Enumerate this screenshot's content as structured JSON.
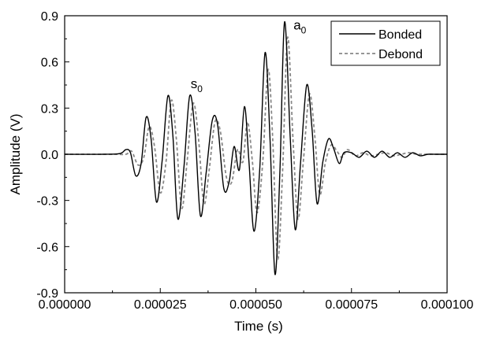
{
  "chart_data": {
    "type": "line",
    "title": "",
    "xlabel": "Time (s)",
    "ylabel": "Amplitude (V)",
    "xlim": [
      0,
      0.0001
    ],
    "ylim": [
      -0.9,
      0.9
    ],
    "x_ticks": [
      "0.000000",
      "0.000025",
      "0.000050",
      "0.000075",
      "0.000100"
    ],
    "y_ticks": [
      "-0.9",
      "-0.6",
      "-0.3",
      "0.0",
      "0.3",
      "0.6",
      "0.9"
    ],
    "legend_position": "top-right",
    "grid": false,
    "annotations": [
      {
        "base": "s",
        "sub": "0",
        "x": 3.45e-05,
        "y": 0.43
      },
      {
        "base": "a",
        "sub": "0",
        "x": 6.15e-05,
        "y": 0.81
      }
    ],
    "series": [
      {
        "name": "Bonded",
        "color": "#000000",
        "dash": "solid",
        "points": [
          [
            0,
            0
          ],
          [
            1e-05,
            0
          ],
          [
            1.45e-05,
            0.005
          ],
          [
            1.6e-05,
            0.03
          ],
          [
            1.72e-05,
            0.01
          ],
          [
            1.86e-05,
            -0.14
          ],
          [
            2e-05,
            -0.06
          ],
          [
            2.13e-05,
            0.24
          ],
          [
            2.26e-05,
            0.1
          ],
          [
            2.4e-05,
            -0.31
          ],
          [
            2.55e-05,
            -0.04
          ],
          [
            2.7e-05,
            0.38
          ],
          [
            2.83e-05,
            0.12
          ],
          [
            2.96e-05,
            -0.42
          ],
          [
            3.12e-05,
            -0.08
          ],
          [
            3.27e-05,
            0.38
          ],
          [
            3.41e-05,
            0.14
          ],
          [
            3.55e-05,
            -0.4
          ],
          [
            3.7e-05,
            -0.12
          ],
          [
            3.86e-05,
            0.22
          ],
          [
            4e-05,
            0.19
          ],
          [
            4.16e-05,
            -0.22
          ],
          [
            4.3e-05,
            -0.18
          ],
          [
            4.43e-05,
            0.05
          ],
          [
            4.57e-05,
            -0.1
          ],
          [
            4.7e-05,
            0.31
          ],
          [
            4.82e-05,
            -0.05
          ],
          [
            4.95e-05,
            -0.5
          ],
          [
            5.1e-05,
            -0.1
          ],
          [
            5.24e-05,
            0.66
          ],
          [
            5.37e-05,
            0.1
          ],
          [
            5.5e-05,
            -0.78
          ],
          [
            5.63e-05,
            -0.1
          ],
          [
            5.75e-05,
            0.86
          ],
          [
            5.9e-05,
            0.1
          ],
          [
            6.03e-05,
            -0.49
          ],
          [
            6.17e-05,
            -0.05
          ],
          [
            6.33e-05,
            0.45
          ],
          [
            6.47e-05,
            0.16
          ],
          [
            6.6e-05,
            -0.32
          ],
          [
            6.75e-05,
            -0.05
          ],
          [
            6.9e-05,
            0.1
          ],
          [
            7.03e-05,
            0.04
          ],
          [
            7.18e-05,
            -0.06
          ],
          [
            7.3e-05,
            0.01
          ],
          [
            7.5e-05,
            0.01
          ],
          [
            7.7e-05,
            -0.02
          ],
          [
            7.9e-05,
            0.02
          ],
          [
            8.1e-05,
            -0.02
          ],
          [
            8.3e-05,
            0.02
          ],
          [
            8.5e-05,
            -0.02
          ],
          [
            8.7e-05,
            0.01
          ],
          [
            8.9e-05,
            -0.02
          ],
          [
            9.1e-05,
            0.01
          ],
          [
            9.3e-05,
            -0.01
          ],
          [
            9.5e-05,
            0.0
          ],
          [
            9.7e-05,
            0.0
          ],
          [
            0.0001,
            0.0
          ]
        ]
      },
      {
        "name": "Debond",
        "color": "#888888",
        "dash": "dashed",
        "points": [
          [
            0,
            0
          ],
          [
            1.2e-05,
            0
          ],
          [
            1.6e-05,
            0.0
          ],
          [
            1.75e-05,
            0.02
          ],
          [
            1.92e-05,
            -0.07
          ],
          [
            2.07e-05,
            -0.02
          ],
          [
            2.21e-05,
            0.18
          ],
          [
            2.35e-05,
            0.05
          ],
          [
            2.5e-05,
            -0.25
          ],
          [
            2.65e-05,
            -0.05
          ],
          [
            2.79e-05,
            0.35
          ],
          [
            2.92e-05,
            0.1
          ],
          [
            3.06e-05,
            -0.35
          ],
          [
            3.2e-05,
            -0.05
          ],
          [
            3.36e-05,
            0.33
          ],
          [
            3.5e-05,
            0.1
          ],
          [
            3.64e-05,
            -0.32
          ],
          [
            3.78e-05,
            -0.1
          ],
          [
            3.93e-05,
            0.21
          ],
          [
            4.07e-05,
            0.15
          ],
          [
            4.23e-05,
            -0.15
          ],
          [
            4.37e-05,
            -0.18
          ],
          [
            4.52e-05,
            0.03
          ],
          [
            4.66e-05,
            -0.05
          ],
          [
            4.78e-05,
            0.21
          ],
          [
            4.91e-05,
            -0.05
          ],
          [
            5.03e-05,
            -0.38
          ],
          [
            5.18e-05,
            -0.05
          ],
          [
            5.32e-05,
            0.55
          ],
          [
            5.44e-05,
            0.1
          ],
          [
            5.57e-05,
            -0.68
          ],
          [
            5.7e-05,
            -0.1
          ],
          [
            5.83e-05,
            0.76
          ],
          [
            5.97e-05,
            0.1
          ],
          [
            6.1e-05,
            -0.42
          ],
          [
            6.24e-05,
            -0.05
          ],
          [
            6.4e-05,
            0.39
          ],
          [
            6.54e-05,
            0.12
          ],
          [
            6.67e-05,
            -0.26
          ],
          [
            6.82e-05,
            -0.05
          ],
          [
            6.97e-05,
            0.06
          ],
          [
            7.12e-05,
            0.02
          ],
          [
            7.25e-05,
            -0.02
          ],
          [
            7.4e-05,
            0.03
          ],
          [
            7.6e-05,
            -0.01
          ],
          [
            7.8e-05,
            0.01
          ],
          [
            8e-05,
            -0.01
          ],
          [
            8.2e-05,
            0.0
          ],
          [
            8.4e-05,
            0.01
          ],
          [
            8.6e-05,
            -0.01
          ],
          [
            8.8e-05,
            0.0
          ],
          [
            9e-05,
            0.01
          ],
          [
            9.2e-05,
            0.0
          ],
          [
            9.4e-05,
            0.0
          ],
          [
            0.0001,
            0.0
          ]
        ]
      }
    ]
  }
}
